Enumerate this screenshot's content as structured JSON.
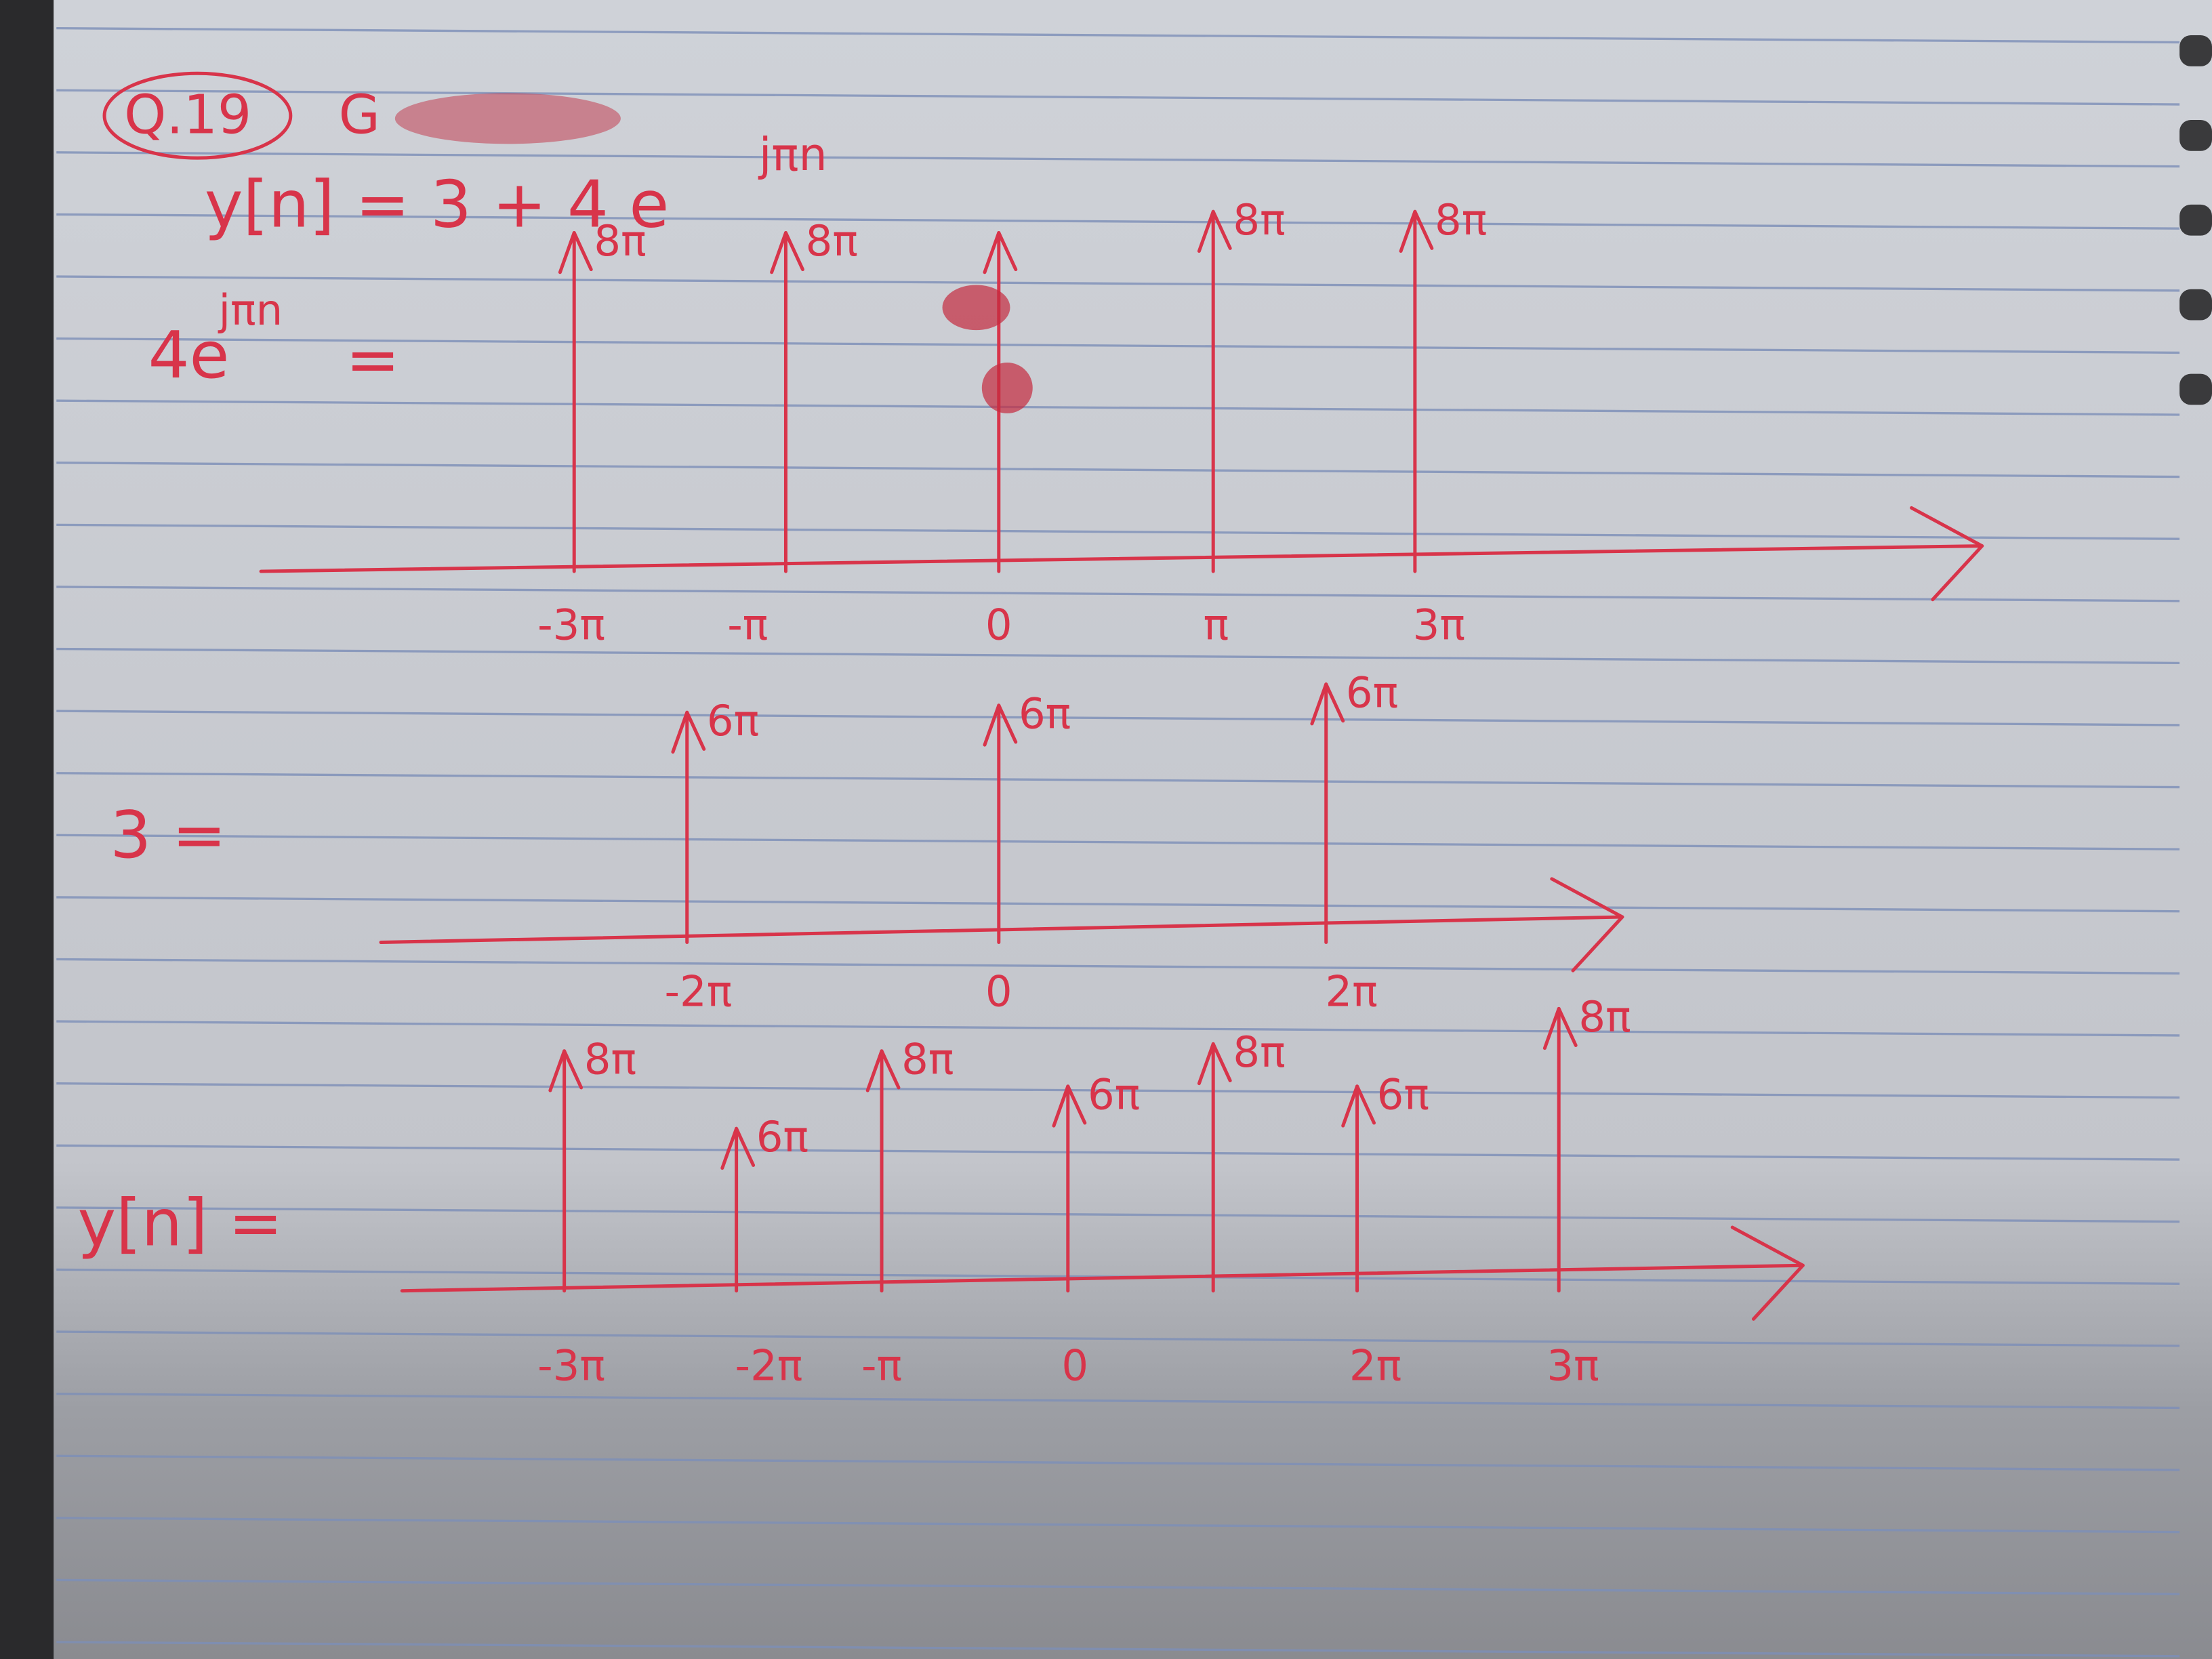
{
  "header": {
    "question": "Q.19",
    "equation": "y[n] = 3 + 4 e",
    "equation_exponent": "jπn"
  },
  "plots": [
    {
      "label": "4e",
      "label_exponent": "jπn",
      "label_tail": "=",
      "impulses": [
        {
          "label": "8π"
        },
        {
          "label": "8π"
        },
        {
          "label": "8π"
        },
        {
          "label": "8π"
        }
      ],
      "ticks": [
        "-3π",
        "-π",
        "0",
        "π",
        "3π"
      ]
    },
    {
      "label": "3 =",
      "impulses": [
        {
          "label": "6π"
        },
        {
          "label": "6π"
        },
        {
          "label": "6π"
        }
      ],
      "ticks": [
        "-2π",
        "0",
        "2π"
      ]
    },
    {
      "label": "y[n] =",
      "impulses": [
        {
          "label": "8π"
        },
        {
          "label": "6π"
        },
        {
          "label": "8π"
        },
        {
          "label": "6π"
        },
        {
          "label": "8π"
        },
        {
          "label": "6π"
        },
        {
          "label": "8π"
        }
      ],
      "ticks": [
        "-3π",
        "-2π",
        "-π",
        "0",
        "2π",
        "3π"
      ]
    }
  ]
}
